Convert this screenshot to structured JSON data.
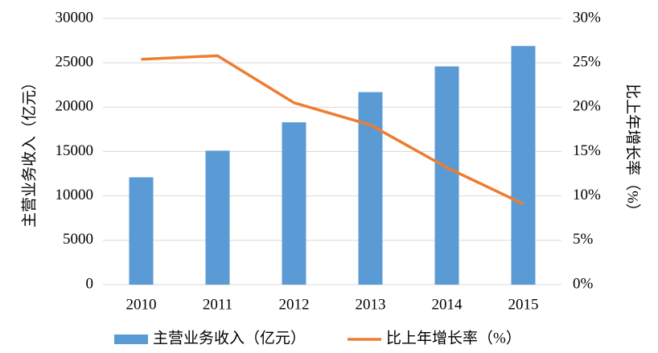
{
  "chart_data": {
    "type": "bar_line",
    "categories": [
      "2010",
      "2011",
      "2012",
      "2013",
      "2014",
      "2015"
    ],
    "series": [
      {
        "name": "主营业务收入（亿元）",
        "type": "bar",
        "color": "#5b9bd5",
        "values": [
          12100,
          15100,
          18300,
          21700,
          24600,
          26900
        ]
      },
      {
        "name": "比上年增长率（%）",
        "type": "line",
        "axis": "y2",
        "color": "#ed7d31",
        "values": [
          25.4,
          25.8,
          20.5,
          18.0,
          13.2,
          9.1
        ]
      }
    ],
    "y_label": "主营业务收入（亿元）",
    "y2_label": "比上年增长率（%）",
    "ylim": [
      0,
      30000
    ],
    "yticks": [
      0,
      5000,
      10000,
      15000,
      20000,
      25000,
      30000
    ],
    "y2lim": [
      0,
      30
    ],
    "y2ticks": [
      {
        "value": 0,
        "label": "0%"
      },
      {
        "value": 5,
        "label": "5%"
      },
      {
        "value": 10,
        "label": "10%"
      },
      {
        "value": 15,
        "label": "15%"
      },
      {
        "value": 20,
        "label": "20%"
      },
      {
        "value": 25,
        "label": "25%"
      },
      {
        "value": 30,
        "label": "30%"
      }
    ],
    "grid": true,
    "legend": "bottom"
  }
}
